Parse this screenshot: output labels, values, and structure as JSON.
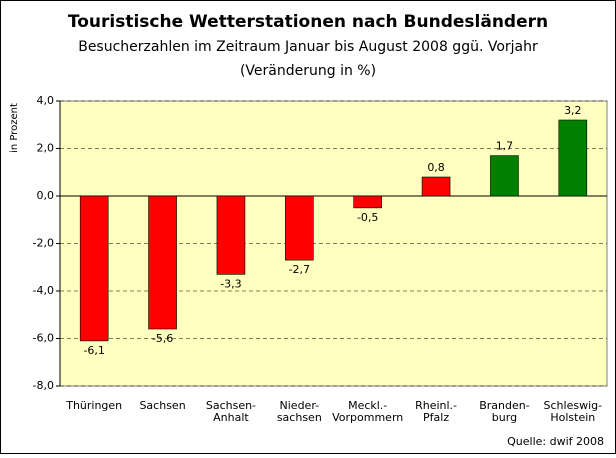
{
  "chart_data": {
    "type": "bar",
    "title": "Touristische Wetterstationen nach Bundesländern",
    "subtitle": [
      "Besucherzahlen im Zeitraum Januar bis August 2008 ggü. Vorjahr",
      "(Veränderung in %)"
    ],
    "y_label": "in Prozent",
    "source": "Quelle: dwif 2008",
    "categories": [
      "Thüringen",
      "Sachsen",
      "Sachsen-\nAnhalt",
      "Nieder-\nsachsen",
      "Meckl.-\nVorpommern",
      "Rheinl.-\nPfalz",
      "Branden-\nburg",
      "Schleswig-\nHolstein"
    ],
    "values": [
      -6.1,
      -5.6,
      -3.3,
      -2.7,
      -0.5,
      0.8,
      1.7,
      3.2
    ],
    "value_labels": [
      "-6,1",
      "-5,6",
      "-3,3",
      "-2,7",
      "-0,5",
      "0,8",
      "1,7",
      "3,2"
    ],
    "colors": [
      "#ff0000",
      "#ff0000",
      "#ff0000",
      "#ff0000",
      "#ff0000",
      "#ff0000",
      "#008000",
      "#008000"
    ],
    "ylim": [
      -8,
      4
    ],
    "yticks": [
      {
        "value": -8,
        "label": "-8,0"
      },
      {
        "value": -6,
        "label": "-6,0"
      },
      {
        "value": -4,
        "label": "-4,0"
      },
      {
        "value": -2,
        "label": "-2,0"
      },
      {
        "value": 0,
        "label": "0,0"
      },
      {
        "value": 2,
        "label": "2,0"
      },
      {
        "value": 4,
        "label": "4,0"
      }
    ],
    "grid": true
  }
}
